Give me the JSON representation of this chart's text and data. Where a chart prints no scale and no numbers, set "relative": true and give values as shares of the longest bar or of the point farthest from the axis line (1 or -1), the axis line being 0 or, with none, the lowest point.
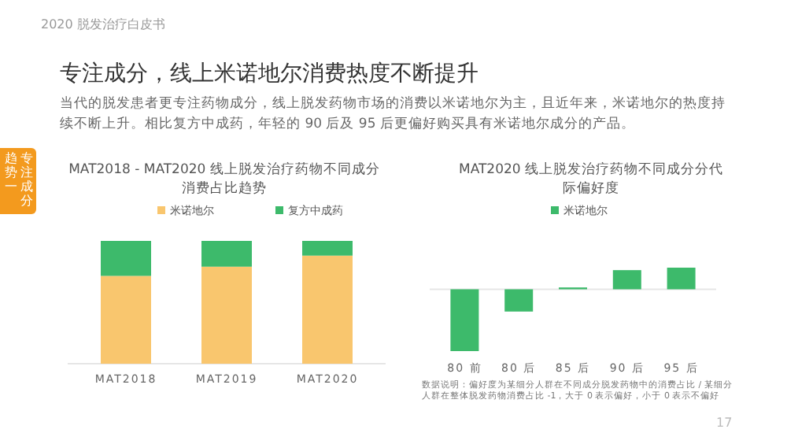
{
  "chart_data": [
    {
      "type": "bar",
      "stacked": true,
      "relative": true,
      "title": "MAT2018 - MAT2020 线上脱发治疗药物不同成分消费占比趋势",
      "categories": [
        "MAT2018",
        "MAT2019",
        "MAT2020"
      ],
      "series": [
        {
          "name": "米诺地尔",
          "color": "#f9c66e",
          "values": [
            0.715,
            0.79,
            0.88
          ]
        },
        {
          "name": "复方中成药",
          "color": "#3dba6b",
          "values": [
            0.285,
            0.21,
            0.12
          ]
        }
      ],
      "legend": "top",
      "annotations": [
        "2020 脱发治疗白皮书",
        "专注成分，线上米诺地尔消费热度不断提升",
        "当代的脱发患者更专注药物成分，线上脱发药物市场的消费以米诺地尔为主，且近年来，米诺地尔的热度持续不断上升。相比复方中成药，年轻的 90 后及 95 后更偏好购买具有米诺地尔成分的产品。",
        "趋势一",
        "专注成分",
        "17"
      ]
    },
    {
      "type": "bar",
      "relative": true,
      "title": "MAT2020 线上脱发治疗药物不同成分分代际偏好度",
      "categories": [
        "80 前",
        "80 后",
        "85 后",
        "90 后",
        "95 后"
      ],
      "series": [
        {
          "name": "米诺地尔",
          "color": "#3dba6b",
          "values": [
            -1,
            -0.36,
            0.03,
            0.31,
            0.35
          ]
        }
      ],
      "legend": "top",
      "annotations": [
        "数据说明：偏好度为某细分人群在不同成分脱发药物中的消费占比 / 某细分人群在整体脱发药物消费占比 -1，大于 0 表示偏好，小于 0 表示不偏好"
      ]
    }
  ]
}
